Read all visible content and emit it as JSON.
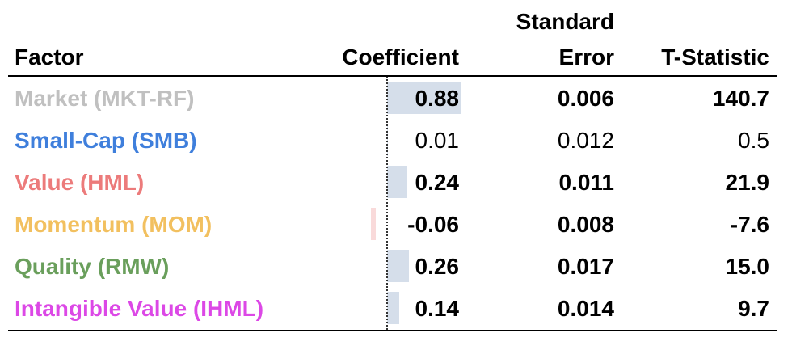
{
  "headers": {
    "factor": "Factor",
    "coefficient": "Coefficient",
    "std_error_line1": "Standard",
    "std_error_line2": "Error",
    "t_statistic": "T-Statistic"
  },
  "rows": [
    {
      "factor": "Market (MKT-RF)",
      "color": "#c0c0c0",
      "coefficient": "0.88",
      "coef_value": 0.88,
      "std_error": "0.006",
      "t_stat": "140.7",
      "significant": true
    },
    {
      "factor": "Small-Cap (SMB)",
      "color": "#3f7fdc",
      "coefficient": "0.01",
      "coef_value": 0.01,
      "std_error": "0.012",
      "t_stat": "0.5",
      "significant": false
    },
    {
      "factor": "Value (HML)",
      "color": "#ec7b7b",
      "coefficient": "0.24",
      "coef_value": 0.24,
      "std_error": "0.011",
      "t_stat": "21.9",
      "significant": true
    },
    {
      "factor": "Momentum (MOM)",
      "color": "#f2c05f",
      "coefficient": "-0.06",
      "coef_value": -0.06,
      "std_error": "0.008",
      "t_stat": "-7.6",
      "significant": true
    },
    {
      "factor": "Quality (RMW)",
      "color": "#6a9f5c",
      "coefficient": "0.26",
      "coef_value": 0.26,
      "std_error": "0.017",
      "t_stat": "15.0",
      "significant": true
    },
    {
      "factor": "Intangible Value (IHML)",
      "color": "#dc48e6",
      "coefficient": "0.14",
      "coef_value": 0.14,
      "std_error": "0.014",
      "t_stat": "9.7",
      "significant": true
    }
  ],
  "bar_colors": {
    "positive": "#d5deea",
    "negative": "#f9dada"
  }
}
